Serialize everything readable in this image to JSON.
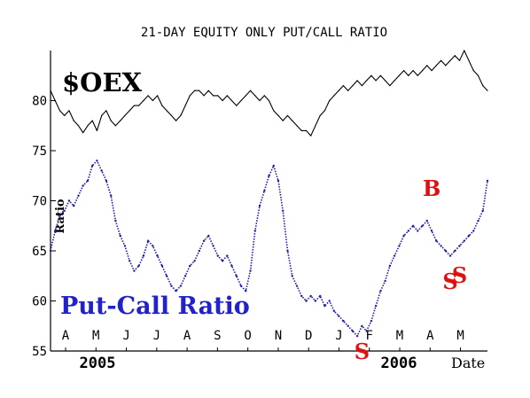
{
  "chart_data": {
    "type": "line",
    "title": "21-DAY EQUITY ONLY PUT/CALL RATIO",
    "ylabel": "Ratio",
    "xlabel": "Date",
    "ylim": [
      55,
      85
    ],
    "yticks": [
      55,
      60,
      65,
      70,
      75,
      80
    ],
    "grid": false,
    "month_labels": [
      "A",
      "M",
      "J",
      "J",
      "A",
      "S",
      "O",
      "N",
      "D",
      "J",
      "F",
      "M",
      "A",
      "M"
    ],
    "year_labels": [
      "2005",
      "2006"
    ],
    "series": [
      {
        "name": "$OEX",
        "color": "#000000",
        "values": [
          81.0,
          80.0,
          79.0,
          78.5,
          79.0,
          78.0,
          77.5,
          76.8,
          77.5,
          78.0,
          77.0,
          78.5,
          79.0,
          78.0,
          77.5,
          78.0,
          78.5,
          79.0,
          79.5,
          79.5,
          80.0,
          80.5,
          80.0,
          80.5,
          79.5,
          79.0,
          78.5,
          78.0,
          78.5,
          79.5,
          80.5,
          81.0,
          81.0,
          80.5,
          81.0,
          80.5,
          80.5,
          80.0,
          80.5,
          80.0,
          79.5,
          80.0,
          80.5,
          81.0,
          80.5,
          80.0,
          80.5,
          80.0,
          79.0,
          78.5,
          78.0,
          78.5,
          78.0,
          77.5,
          77.0,
          77.0,
          76.5,
          77.5,
          78.5,
          79.0,
          80.0,
          80.5,
          81.0,
          81.5,
          81.0,
          81.5,
          82.0,
          81.5,
          82.0,
          82.5,
          82.0,
          82.5,
          82.0,
          81.5,
          82.0,
          82.5,
          83.0,
          82.5,
          83.0,
          82.5,
          83.0,
          83.5,
          83.0,
          83.5,
          84.0,
          83.5,
          84.0,
          84.5,
          84.0,
          85.0,
          84.0,
          83.0,
          82.5,
          81.5,
          81.0
        ]
      },
      {
        "name": "Put-Call Ratio",
        "color": "#1a1aa6",
        "values": [
          65.0,
          67.0,
          68.5,
          69.0,
          70.0,
          69.5,
          70.5,
          71.5,
          72.0,
          73.5,
          74.0,
          73.0,
          72.0,
          70.5,
          68.0,
          66.5,
          65.5,
          64.0,
          63.0,
          63.5,
          64.5,
          66.0,
          65.5,
          64.5,
          63.5,
          62.5,
          61.5,
          61.0,
          61.5,
          62.5,
          63.5,
          64.0,
          65.0,
          66.0,
          66.5,
          65.5,
          64.5,
          64.0,
          64.5,
          63.5,
          62.5,
          61.5,
          61.0,
          63.0,
          67.0,
          69.5,
          71.0,
          72.5,
          73.5,
          72.0,
          69.0,
          65.0,
          62.5,
          61.5,
          60.5,
          60.0,
          60.5,
          60.0,
          60.5,
          59.5,
          60.0,
          59.0,
          58.5,
          58.0,
          57.5,
          57.0,
          56.5,
          57.5,
          57.0,
          58.0,
          59.5,
          61.0,
          62.0,
          63.5,
          64.5,
          65.5,
          66.5,
          67.0,
          67.5,
          67.0,
          67.5,
          68.0,
          67.0,
          66.0,
          65.5,
          65.0,
          64.5,
          65.0,
          65.5,
          66.0,
          66.5,
          67.0,
          68.0,
          69.0,
          72.0
        ]
      }
    ],
    "annotations": [
      {
        "label": "$OEX",
        "color": "#000000"
      },
      {
        "label": "Put-Call Ratio",
        "color": "#2222cc"
      },
      {
        "label": "B",
        "color": "#e01010",
        "x_index": 82,
        "y": 70.5
      },
      {
        "label": "S",
        "color": "#e01010",
        "x_index": 86,
        "y": 61.2
      },
      {
        "label": "S",
        "color": "#e01010",
        "x_index": 88,
        "y": 61.8
      },
      {
        "label": "S",
        "color": "#e01010",
        "x_index": 67,
        "y": 54.2
      }
    ]
  }
}
